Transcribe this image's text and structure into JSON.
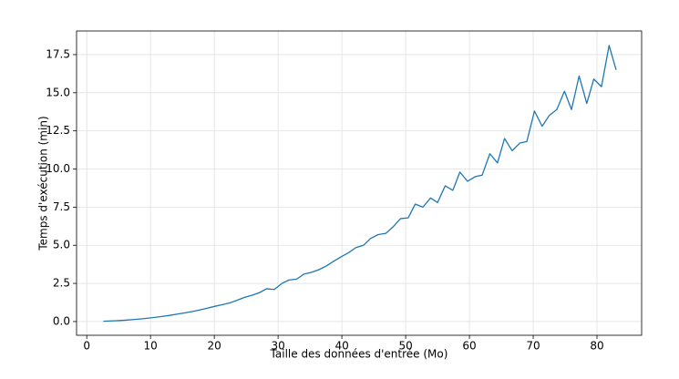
{
  "chart_data": {
    "type": "line",
    "xlabel": "Taille des données d'entrée (Mo)",
    "ylabel": "Temps d'exécution (min)",
    "x": [
      2.6,
      3.8,
      4.9,
      6.1,
      7.3,
      8.4,
      9.6,
      10.8,
      11.9,
      13.1,
      14.2,
      15.4,
      16.6,
      17.7,
      18.9,
      20.1,
      21.2,
      22.4,
      23.6,
      24.7,
      25.9,
      27.1,
      28.2,
      29.4,
      30.6,
      31.7,
      32.9,
      34.1,
      35.2,
      36.4,
      37.6,
      38.7,
      39.9,
      41.0,
      42.2,
      43.4,
      44.5,
      45.7,
      46.9,
      48.0,
      49.2,
      50.4,
      51.5,
      52.7,
      53.9,
      55.0,
      56.2,
      57.4,
      58.5,
      59.7,
      60.9,
      62.0,
      63.2,
      64.4,
      65.5,
      66.7,
      67.9,
      69.0,
      70.2,
      71.4,
      72.5,
      73.7,
      74.9,
      76.0,
      77.2,
      78.4,
      79.5,
      80.7,
      81.9,
      83.0
    ],
    "values": [
      0.02,
      0.04,
      0.06,
      0.09,
      0.13,
      0.17,
      0.22,
      0.28,
      0.34,
      0.41,
      0.49,
      0.57,
      0.66,
      0.76,
      0.88,
      1.0,
      1.1,
      1.22,
      1.4,
      1.58,
      1.72,
      1.9,
      2.15,
      2.1,
      2.5,
      2.72,
      2.78,
      3.12,
      3.22,
      3.4,
      3.65,
      3.95,
      4.25,
      4.5,
      4.85,
      5.0,
      5.45,
      5.7,
      5.78,
      6.2,
      6.75,
      6.8,
      7.7,
      7.5,
      8.1,
      7.8,
      8.9,
      8.6,
      9.8,
      9.2,
      9.5,
      9.6,
      11.0,
      10.4,
      12.0,
      11.2,
      11.7,
      11.8,
      13.8,
      12.8,
      13.5,
      13.9,
      15.1,
      13.9,
      16.1,
      14.3,
      15.9,
      15.4,
      18.1,
      16.5
    ],
    "color": "#1f77b4",
    "xlim": [
      -1.6,
      87
    ],
    "ylim": [
      -0.9,
      19.05
    ],
    "xticks": [
      0,
      10,
      20,
      30,
      40,
      50,
      60,
      70,
      80
    ],
    "yticks": [
      {
        "value": 0,
        "label": "0.0"
      },
      2.5,
      {
        "value": 5,
        "label": "5.0"
      },
      7.5,
      {
        "value": 10,
        "label": "10.0"
      },
      12.5,
      {
        "value": 15,
        "label": "15.0"
      },
      17.5
    ],
    "grid": true
  }
}
